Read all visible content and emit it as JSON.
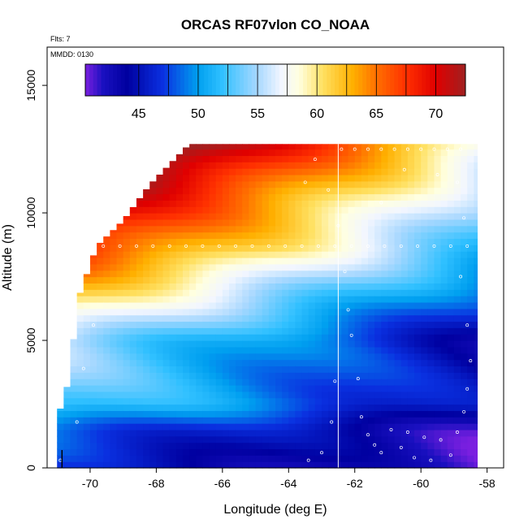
{
  "chart_data": {
    "type": "heatmap",
    "title": "ORCAS RF07vlon CO_NOAA",
    "subtitle_flights": "Flts: 7",
    "subtitle_date": "MMDD: 0130",
    "xlabel": "Longitude (deg E)",
    "ylabel": "Altitude (m)",
    "xlim": [
      -71.3,
      -57.5
    ],
    "ylim": [
      0,
      16500
    ],
    "x_ticks": [
      -70,
      -68,
      -66,
      -64,
      -62,
      -60,
      -58
    ],
    "x_tick_labels": [
      "-70",
      "-68",
      "-66",
      "-64",
      "-62",
      "-60",
      "-58"
    ],
    "y_ticks": [
      0,
      5000,
      10000,
      15000
    ],
    "y_tick_labels": [
      "0",
      "5000",
      "10000",
      "15000"
    ],
    "colorbar": {
      "range": [
        40.5,
        72.5
      ],
      "ticks": [
        45,
        50,
        55,
        60,
        65,
        70
      ],
      "tick_labels": [
        "45",
        "50",
        "55",
        "60",
        "65",
        "70"
      ],
      "stops": [
        {
          "v": 40.5,
          "c": "#7a1fe0"
        },
        {
          "v": 42.0,
          "c": "#1a10c0"
        },
        {
          "v": 44.0,
          "c": "#0000a0"
        },
        {
          "v": 47.0,
          "c": "#0a30e0"
        },
        {
          "v": 50.0,
          "c": "#00a0f0"
        },
        {
          "v": 52.0,
          "c": "#30c0ff"
        },
        {
          "v": 55.0,
          "c": "#a8d8ff"
        },
        {
          "v": 57.0,
          "c": "#f2f6ff"
        },
        {
          "v": 58.5,
          "c": "#ffffe0"
        },
        {
          "v": 60.5,
          "c": "#ffe060"
        },
        {
          "v": 63.0,
          "c": "#ffb000"
        },
        {
          "v": 65.0,
          "c": "#ff7000"
        },
        {
          "v": 67.5,
          "c": "#ff3000"
        },
        {
          "v": 70.0,
          "c": "#e00000"
        },
        {
          "v": 72.5,
          "c": "#a02020"
        }
      ]
    },
    "field_bounds": {
      "lon_min": -71.0,
      "lon_max": -58.3,
      "alt_max": 12700,
      "top_envelope": [
        {
          "lon": -71.0,
          "alt": 1900
        },
        {
          "lon": -70.6,
          "alt": 3600
        },
        {
          "lon": -70.4,
          "alt": 6500
        },
        {
          "lon": -69.8,
          "alt": 8700
        },
        {
          "lon": -69.0,
          "alt": 9700
        },
        {
          "lon": -68.2,
          "alt": 11100
        },
        {
          "lon": -67.0,
          "alt": 12700
        },
        {
          "lon": -58.5,
          "alt": 12700
        }
      ]
    },
    "vertical_profile": [
      {
        "alt": 0,
        "co": 44
      },
      {
        "alt": 1500,
        "co": 46
      },
      {
        "alt": 2500,
        "co": 50
      },
      {
        "alt": 5000,
        "co": 51
      },
      {
        "alt": 7000,
        "co": 57
      },
      {
        "alt": 8600,
        "co": 62
      },
      {
        "alt": 10500,
        "co": 66
      },
      {
        "alt": 12000,
        "co": 70
      },
      {
        "alt": 12700,
        "co": 72
      }
    ],
    "east_west_trend_per_deg": -1.3,
    "sample_points": [
      {
        "lon": -70.9,
        "alt": 300
      },
      {
        "lon": -70.4,
        "alt": 1800
      },
      {
        "lon": -70.2,
        "alt": 3900
      },
      {
        "lon": -69.9,
        "alt": 5600
      },
      {
        "lon": -69.6,
        "alt": 8700
      },
      {
        "lon": -69.1,
        "alt": 8700
      },
      {
        "lon": -68.6,
        "alt": 8700
      },
      {
        "lon": -68.1,
        "alt": 8700
      },
      {
        "lon": -67.6,
        "alt": 8700
      },
      {
        "lon": -67.1,
        "alt": 8700
      },
      {
        "lon": -66.6,
        "alt": 8700
      },
      {
        "lon": -66.1,
        "alt": 8700
      },
      {
        "lon": -65.6,
        "alt": 8700
      },
      {
        "lon": -65.1,
        "alt": 8700
      },
      {
        "lon": -64.6,
        "alt": 8700
      },
      {
        "lon": -64.1,
        "alt": 8700
      },
      {
        "lon": -63.6,
        "alt": 8700
      },
      {
        "lon": -63.1,
        "alt": 8700
      },
      {
        "lon": -62.6,
        "alt": 8700
      },
      {
        "lon": -62.1,
        "alt": 8700
      },
      {
        "lon": -61.6,
        "alt": 8700
      },
      {
        "lon": -61.1,
        "alt": 8700
      },
      {
        "lon": -60.6,
        "alt": 8700
      },
      {
        "lon": -60.1,
        "alt": 8700
      },
      {
        "lon": -59.6,
        "alt": 8700
      },
      {
        "lon": -59.1,
        "alt": 8700
      },
      {
        "lon": -58.6,
        "alt": 8700
      },
      {
        "lon": -62.4,
        "alt": 12500
      },
      {
        "lon": -62.0,
        "alt": 12500
      },
      {
        "lon": -61.6,
        "alt": 12500
      },
      {
        "lon": -61.2,
        "alt": 12500
      },
      {
        "lon": -60.8,
        "alt": 12500
      },
      {
        "lon": -60.4,
        "alt": 12500
      },
      {
        "lon": -60.0,
        "alt": 12500
      },
      {
        "lon": -59.6,
        "alt": 12500
      },
      {
        "lon": -59.2,
        "alt": 12500
      },
      {
        "lon": -58.8,
        "alt": 12500
      },
      {
        "lon": -63.5,
        "alt": 11200
      },
      {
        "lon": -63.2,
        "alt": 12100
      },
      {
        "lon": -62.8,
        "alt": 10900
      },
      {
        "lon": -62.5,
        "alt": 9500
      },
      {
        "lon": -62.3,
        "alt": 7700
      },
      {
        "lon": -62.2,
        "alt": 6200
      },
      {
        "lon": -62.1,
        "alt": 5200
      },
      {
        "lon": -61.9,
        "alt": 3500
      },
      {
        "lon": -61.8,
        "alt": 2000
      },
      {
        "lon": -61.6,
        "alt": 1300
      },
      {
        "lon": -61.4,
        "alt": 900
      },
      {
        "lon": -61.2,
        "alt": 600
      },
      {
        "lon": -60.9,
        "alt": 1500
      },
      {
        "lon": -60.6,
        "alt": 800
      },
      {
        "lon": -60.4,
        "alt": 1400
      },
      {
        "lon": -60.2,
        "alt": 400
      },
      {
        "lon": -59.9,
        "alt": 1200
      },
      {
        "lon": -59.7,
        "alt": 300
      },
      {
        "lon": -59.4,
        "alt": 1100
      },
      {
        "lon": -59.1,
        "alt": 500
      },
      {
        "lon": -58.9,
        "alt": 1400
      },
      {
        "lon": -58.7,
        "alt": 2200
      },
      {
        "lon": -58.6,
        "alt": 3100
      },
      {
        "lon": -58.5,
        "alt": 4200
      },
      {
        "lon": -58.6,
        "alt": 5600
      },
      {
        "lon": -58.8,
        "alt": 7500
      },
      {
        "lon": -58.7,
        "alt": 9800
      },
      {
        "lon": -58.9,
        "alt": 11200
      },
      {
        "lon": -59.5,
        "alt": 11500
      },
      {
        "lon": -60.5,
        "alt": 11700
      },
      {
        "lon": -61.2,
        "alt": 10400
      },
      {
        "lon": -62.6,
        "alt": 3400
      },
      {
        "lon": -62.7,
        "alt": 1800
      },
      {
        "lon": -63.0,
        "alt": 600
      },
      {
        "lon": -63.4,
        "alt": 300
      }
    ]
  }
}
